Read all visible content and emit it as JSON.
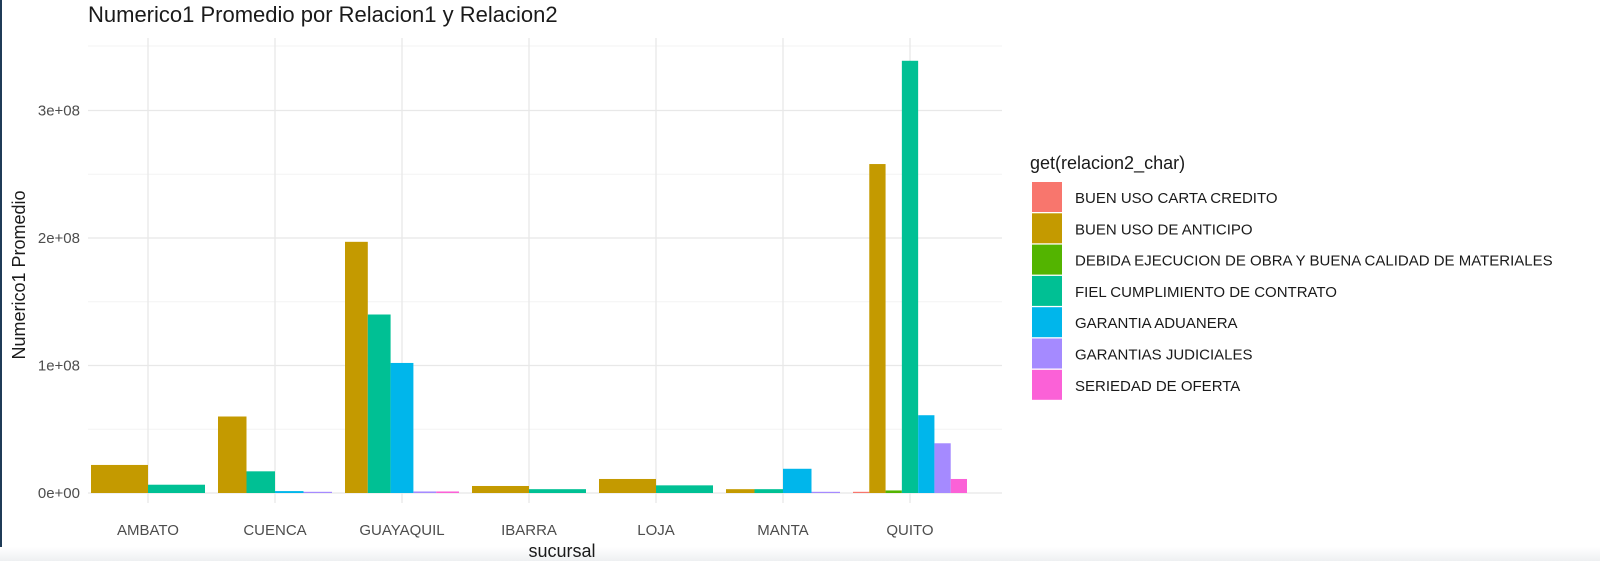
{
  "chart_data": {
    "type": "bar",
    "title": "Numerico1 Promedio por Relacion1 y Relacion2",
    "xlabel": "sucursal",
    "ylabel": "Numerico1 Promedio",
    "ylim": [
      0,
      355000000
    ],
    "y_ticks": [
      {
        "value": 0,
        "label": "0e+00"
      },
      {
        "value": 100000000,
        "label": "1e+08"
      },
      {
        "value": 200000000,
        "label": "2e+08"
      },
      {
        "value": 300000000,
        "label": "3e+08"
      }
    ],
    "grid": true,
    "legend_title": "get(relacion2_char)",
    "legend_position": "right",
    "categories": [
      "AMBATO",
      "CUENCA",
      "GUAYAQUIL",
      "IBARRA",
      "LOJA",
      "MANTA",
      "QUITO"
    ],
    "series": [
      {
        "name": "BUEN USO CARTA CREDITO",
        "color": "#F8766D",
        "values": [
          null,
          null,
          null,
          null,
          null,
          null,
          600000
        ]
      },
      {
        "name": "BUEN USO DE ANTICIPO",
        "color": "#C49A00",
        "values": [
          22000000,
          60000000,
          197000000,
          5500000,
          11000000,
          3000000,
          258000000
        ]
      },
      {
        "name": "DEBIDA EJECUCION DE OBRA Y BUENA CALIDAD DE MATERIALES",
        "color": "#53B400",
        "values": [
          null,
          null,
          null,
          null,
          null,
          null,
          2000000
        ]
      },
      {
        "name": "FIEL CUMPLIMIENTO DE CONTRATO",
        "color": "#00C094",
        "values": [
          6500000,
          17000000,
          140000000,
          3000000,
          6000000,
          3000000,
          339000000
        ]
      },
      {
        "name": "GARANTIA ADUANERA",
        "color": "#00B6EB",
        "values": [
          null,
          1500000,
          102000000,
          null,
          null,
          19000000,
          61000000
        ]
      },
      {
        "name": "GARANTIAS JUDICIALES",
        "color": "#A58AFF",
        "values": [
          null,
          600000,
          1200000,
          null,
          null,
          800000,
          39000000
        ]
      },
      {
        "name": "SERIEDAD DE OFERTA",
        "color": "#FB61D7",
        "values": [
          null,
          null,
          1200000,
          null,
          null,
          null,
          11000000
        ]
      }
    ]
  }
}
